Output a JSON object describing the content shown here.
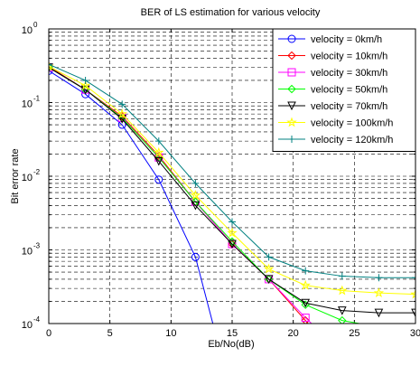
{
  "chart_data": {
    "type": "line",
    "title": "BER of LS estimation for various velocity",
    "xlabel": "Eb/No(dB)",
    "ylabel": "Bit error rate",
    "xlim": [
      0,
      30
    ],
    "ylim": [
      0.0001,
      1
    ],
    "yscale": "log",
    "grid": "on (dashed, with minor log gridlines)",
    "legend_position": "top-right",
    "x_ticks": [
      0,
      5,
      10,
      15,
      20,
      25,
      30
    ],
    "y_ticks": [
      {
        "value": 1,
        "base": "10",
        "exp": "0"
      },
      {
        "value": 0.1,
        "base": "10",
        "exp": "-1"
      },
      {
        "value": 0.01,
        "base": "10",
        "exp": "-2"
      },
      {
        "value": 0.001,
        "base": "10",
        "exp": "-3"
      },
      {
        "value": 0.0001,
        "base": "10",
        "exp": "-4"
      }
    ],
    "series": [
      {
        "name": "velocity = 0km/h",
        "color": "#0000ff",
        "marker": "circle",
        "x": [
          0,
          3,
          6,
          9,
          12,
          15
        ],
        "y": [
          0.27,
          0.13,
          0.05,
          0.009,
          0.0008,
          1e-05
        ]
      },
      {
        "name": "velocity = 10km/h",
        "color": "#ff0000",
        "marker": "diamond",
        "x": [
          0,
          3,
          6,
          9,
          12,
          15,
          18,
          21,
          24
        ],
        "y": [
          0.31,
          0.15,
          0.065,
          0.019,
          0.0045,
          0.0012,
          0.0004,
          0.00011,
          3e-05
        ]
      },
      {
        "name": "velocity = 30km/h",
        "color": "#ff00ff",
        "marker": "square",
        "x": [
          0,
          3,
          6,
          9,
          12,
          15,
          18,
          21,
          24
        ],
        "y": [
          0.3,
          0.15,
          0.062,
          0.018,
          0.0045,
          0.0012,
          0.0004,
          0.00012,
          4e-05
        ]
      },
      {
        "name": "velocity = 50km/h",
        "color": "#00ff00",
        "marker": "diamond",
        "x": [
          0,
          3,
          6,
          9,
          12,
          15,
          18,
          21,
          24,
          27
        ],
        "y": [
          0.3,
          0.15,
          0.062,
          0.018,
          0.0045,
          0.0013,
          0.0004,
          0.00018,
          0.00011,
          9e-05
        ]
      },
      {
        "name": "velocity = 70km/h",
        "color": "#000000",
        "marker": "triangle-down",
        "x": [
          0,
          3,
          6,
          9,
          12,
          15,
          18,
          21,
          24,
          27,
          30
        ],
        "y": [
          0.3,
          0.15,
          0.06,
          0.016,
          0.004,
          0.0012,
          0.0004,
          0.00019,
          0.00015,
          0.00014,
          0.00014
        ]
      },
      {
        "name": "velocity = 100km/h",
        "color": "#ffff00",
        "marker": "star",
        "x": [
          0,
          3,
          6,
          9,
          12,
          15,
          18,
          21,
          24,
          27,
          30
        ],
        "y": [
          0.31,
          0.17,
          0.07,
          0.021,
          0.0055,
          0.0017,
          0.00055,
          0.00033,
          0.00028,
          0.00026,
          0.00025
        ]
      },
      {
        "name": "velocity = 120km/h",
        "color": "#008080",
        "marker": "plus",
        "x": [
          0,
          3,
          6,
          9,
          12,
          15,
          18,
          21,
          24,
          27,
          30
        ],
        "y": [
          0.33,
          0.2,
          0.095,
          0.03,
          0.008,
          0.0024,
          0.0008,
          0.00052,
          0.00044,
          0.00042,
          0.00042
        ]
      }
    ]
  }
}
